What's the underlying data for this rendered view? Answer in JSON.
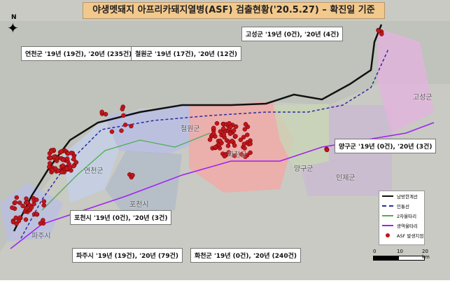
{
  "title": "야생멧돼지 아프리카돼지열병(ASF) 검출현황('20.5.27) – 확진일 기준",
  "compass": "N",
  "callouts": [
    {
      "region": "goseong",
      "text": "고성군 '19년 (0건), '20년 (4건)"
    },
    {
      "region": "yeoncheon",
      "text": "연천군 '19년 (19건), '20년 (235건)"
    },
    {
      "region": "cheorwon",
      "text": "철원군 '19년 (17건), '20년 (12건)"
    },
    {
      "region": "yanggu",
      "text": "양구군 '19년 (0건), '20년 (3건)"
    },
    {
      "region": "pocheon",
      "text": "포천시 '19년 (0건), '20년 (3건)"
    },
    {
      "region": "paju",
      "text": "파주시 '19년 (19건), '20년 (79건)"
    },
    {
      "region": "hwacheon",
      "text": "화천군 '19년 (0건), '20년 (240건)"
    }
  ],
  "map_labels": {
    "cheorwon": "철원군",
    "hwacheon": "화천군",
    "yanggu": "양구군",
    "inje": "인제군",
    "goseong": "고성군",
    "pocheon": "포천시",
    "paju": "파주시",
    "yeoncheon": "연천군"
  },
  "legend": {
    "items": [
      {
        "label": "남방한계선",
        "color": "#111111"
      },
      {
        "label": "민통선",
        "color": "#2a2aa0"
      },
      {
        "label": "2차울타리",
        "color": "#4caf50"
      },
      {
        "label": "광역울타리",
        "color": "#a020f0"
      },
      {
        "label": "ASF 발생지점",
        "color": "#c0161c"
      }
    ]
  },
  "scale": {
    "ticks": [
      "0",
      "10",
      "20 km"
    ]
  }
}
